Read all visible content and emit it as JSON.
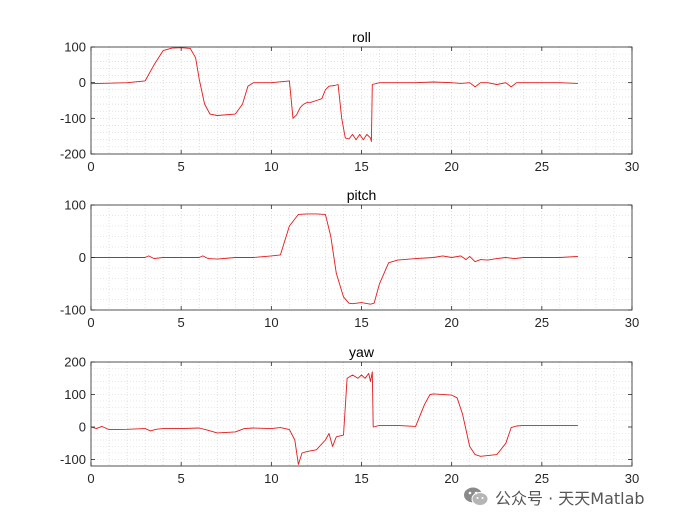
{
  "chart_data": [
    {
      "type": "line",
      "title": "roll",
      "x": [
        0,
        0.5,
        2,
        3,
        3.5,
        4,
        4.5,
        5,
        5.5,
        5.8,
        6,
        6.3,
        6.6,
        7,
        8,
        8.4,
        8.7,
        9,
        9.3,
        10,
        11,
        11.2,
        11.4,
        11.6,
        11.8,
        12,
        12.2,
        12.5,
        12.8,
        13,
        13.2,
        13.5,
        13.7,
        13.9,
        14.1,
        14.3,
        14.5,
        14.7,
        14.9,
        15.1,
        15.3,
        15.5,
        15.55,
        15.6,
        16,
        18,
        19,
        20,
        20.5,
        21,
        21.3,
        21.6,
        22,
        22.5,
        23,
        23.3,
        23.6,
        24,
        26,
        27
      ],
      "values": [
        -3,
        -2,
        0,
        5,
        50,
        90,
        97,
        98,
        96,
        70,
        10,
        -60,
        -88,
        -92,
        -88,
        -60,
        -10,
        0,
        0,
        0,
        5,
        -100,
        -90,
        -70,
        -60,
        -55,
        -55,
        -50,
        -45,
        -20,
        -10,
        -8,
        -5,
        -100,
        -155,
        -158,
        -145,
        -160,
        -145,
        -160,
        -145,
        -155,
        -165,
        -5,
        0,
        0,
        2,
        0,
        -2,
        0,
        -12,
        0,
        0,
        -5,
        0,
        -12,
        0,
        0,
        0,
        -2
      ],
      "xlim": [
        0,
        30
      ],
      "ylim": [
        -200,
        100
      ],
      "xticks": [
        "0",
        "5",
        "10",
        "15",
        "20",
        "25",
        "30"
      ],
      "yticks": [
        "100",
        "0",
        "-100",
        "-200"
      ],
      "grid": "minor-dotted",
      "color": "#e41a1c"
    },
    {
      "type": "line",
      "title": "pitch",
      "x": [
        0,
        1,
        2,
        3,
        3.2,
        3.5,
        4,
        5,
        6,
        6.2,
        6.5,
        7,
        8,
        9,
        10,
        10.5,
        11,
        11.5,
        12,
        12.5,
        13,
        13.3,
        13.6,
        14,
        14.3,
        14.5,
        15,
        15.5,
        15.7,
        16,
        16.5,
        17,
        18,
        19,
        19.5,
        20,
        20.5,
        20.8,
        21,
        21.3,
        21.6,
        22,
        22.5,
        23,
        23.5,
        24,
        25,
        26,
        27
      ],
      "values": [
        0,
        0,
        0,
        0,
        3,
        -2,
        0,
        0,
        0,
        3,
        -2,
        -3,
        0,
        0,
        3,
        5,
        60,
        82,
        83,
        83,
        82,
        40,
        -30,
        -75,
        -87,
        -88,
        -86,
        -89,
        -87,
        -50,
        -10,
        -5,
        -2,
        0,
        3,
        0,
        3,
        -4,
        2,
        -8,
        -4,
        -5,
        -2,
        0,
        -2,
        0,
        0,
        0,
        2
      ],
      "xlim": [
        0,
        30
      ],
      "ylim": [
        -100,
        100
      ],
      "xticks": [
        "0",
        "5",
        "10",
        "15",
        "20",
        "25",
        "30"
      ],
      "yticks": [
        "100",
        "0",
        "-100"
      ],
      "grid": "minor-dotted",
      "color": "#e41a1c"
    },
    {
      "type": "line",
      "title": "yaw",
      "x": [
        0,
        0.3,
        0.6,
        1,
        2,
        3,
        3.3,
        3.6,
        4,
        5,
        6,
        6.5,
        7,
        8,
        8.5,
        9,
        10,
        10.5,
        11,
        11.3,
        11.5,
        11.7,
        12,
        12.5,
        13,
        13.2,
        13.4,
        13.6,
        14,
        14.2,
        14.5,
        14.8,
        15,
        15.2,
        15.4,
        15.5,
        15.6,
        15.65,
        16,
        17,
        18,
        18.5,
        18.8,
        19,
        20,
        20.3,
        20.6,
        21,
        21.3,
        21.6,
        22,
        22.5,
        23,
        23.3,
        23.6,
        24,
        25,
        26,
        27
      ],
      "values": [
        0,
        -5,
        2,
        -8,
        -7,
        -5,
        -12,
        -7,
        -5,
        -5,
        -3,
        -10,
        -18,
        -15,
        -5,
        -3,
        -5,
        -2,
        -8,
        -40,
        -115,
        -80,
        -75,
        -70,
        -40,
        -20,
        -60,
        -30,
        -25,
        150,
        160,
        150,
        160,
        150,
        165,
        140,
        170,
        0,
        5,
        5,
        2,
        70,
        100,
        102,
        98,
        90,
        40,
        -60,
        -85,
        -90,
        -88,
        -85,
        -50,
        -2,
        3,
        5,
        5,
        5,
        5
      ],
      "xlim": [
        0,
        30
      ],
      "ylim": [
        -120,
        200
      ],
      "xticks": [
        "0",
        "5",
        "10",
        "15",
        "20",
        "25",
        "30"
      ],
      "yticks": [
        "200",
        "100",
        "0",
        "-100"
      ],
      "grid": "minor-dotted",
      "color": "#e41a1c"
    }
  ],
  "watermark": {
    "icon": "wechat-icon",
    "text": "公众号 · 天天Matlab"
  }
}
